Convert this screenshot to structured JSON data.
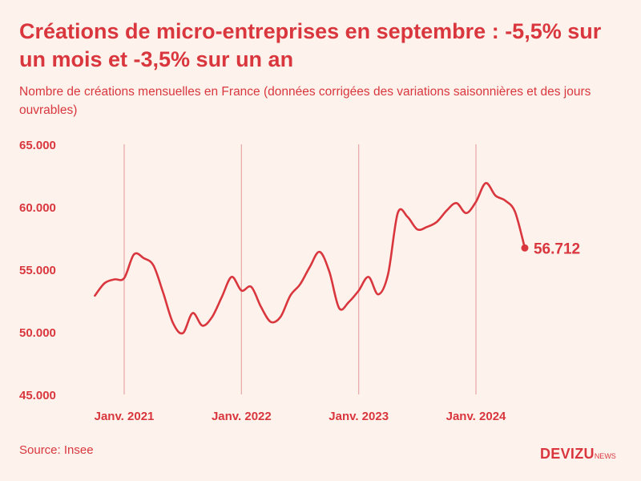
{
  "title": "Créations de micro-entreprises en septembre : -5,5% sur un mois et -3,5% sur un an",
  "subtitle": "Nombre de créations mensuelles en France (données corrigées des variations saisonnières et des jours ouvrables)",
  "source": "Source: Insee",
  "brand": {
    "main": "DEVIZU",
    "suffix": "NEWS"
  },
  "colors": {
    "accent": "#d9363e",
    "background": "#fdf3ec",
    "grid": "#e8a6a6"
  },
  "chart_data": {
    "type": "line",
    "ylim": [
      45000,
      65000
    ],
    "y_ticks": [
      {
        "value": 65000,
        "label": "65.000"
      },
      {
        "value": 60000,
        "label": "60.000"
      },
      {
        "value": 55000,
        "label": "55.000"
      },
      {
        "value": 50000,
        "label": "50.000"
      },
      {
        "value": 45000,
        "label": "45.000"
      }
    ],
    "x_ticks": [
      {
        "date": "2021-01",
        "label": "Janv. 2021"
      },
      {
        "date": "2022-01",
        "label": "Janv. 2022"
      },
      {
        "date": "2023-01",
        "label": "Janv. 2023"
      },
      {
        "date": "2024-01",
        "label": "Janv. 2024"
      }
    ],
    "vertical_gridlines": true,
    "series": [
      {
        "points": [
          {
            "date": "2020-10",
            "value": 52900
          },
          {
            "date": "2020-11",
            "value": 53900
          },
          {
            "date": "2020-12",
            "value": 54200
          },
          {
            "date": "2021-01",
            "value": 54300
          },
          {
            "date": "2021-02",
            "value": 56200
          },
          {
            "date": "2021-03",
            "value": 55900
          },
          {
            "date": "2021-04",
            "value": 55300
          },
          {
            "date": "2021-05",
            "value": 53100
          },
          {
            "date": "2021-06",
            "value": 50700
          },
          {
            "date": "2021-07",
            "value": 49900
          },
          {
            "date": "2021-08",
            "value": 51500
          },
          {
            "date": "2021-09",
            "value": 50500
          },
          {
            "date": "2021-10",
            "value": 51200
          },
          {
            "date": "2021-11",
            "value": 52800
          },
          {
            "date": "2021-12",
            "value": 54400
          },
          {
            "date": "2022-01",
            "value": 53300
          },
          {
            "date": "2022-02",
            "value": 53600
          },
          {
            "date": "2022-03",
            "value": 52000
          },
          {
            "date": "2022-04",
            "value": 50800
          },
          {
            "date": "2022-05",
            "value": 51200
          },
          {
            "date": "2022-06",
            "value": 52900
          },
          {
            "date": "2022-07",
            "value": 53800
          },
          {
            "date": "2022-08",
            "value": 55200
          },
          {
            "date": "2022-09",
            "value": 56400
          },
          {
            "date": "2022-10",
            "value": 54800
          },
          {
            "date": "2022-11",
            "value": 51900
          },
          {
            "date": "2022-12",
            "value": 52400
          },
          {
            "date": "2023-01",
            "value": 53300
          },
          {
            "date": "2023-02",
            "value": 54400
          },
          {
            "date": "2023-03",
            "value": 53000
          },
          {
            "date": "2023-04",
            "value": 54600
          },
          {
            "date": "2023-05",
            "value": 59500
          },
          {
            "date": "2023-06",
            "value": 59200
          },
          {
            "date": "2023-07",
            "value": 58200
          },
          {
            "date": "2023-08",
            "value": 58400
          },
          {
            "date": "2023-09",
            "value": 58800
          },
          {
            "date": "2023-10",
            "value": 59700
          },
          {
            "date": "2023-11",
            "value": 60300
          },
          {
            "date": "2023-12",
            "value": 59500
          },
          {
            "date": "2024-01",
            "value": 60400
          },
          {
            "date": "2024-02",
            "value": 61900
          },
          {
            "date": "2024-03",
            "value": 60900
          },
          {
            "date": "2024-04",
            "value": 60500
          },
          {
            "date": "2024-05",
            "value": 59600
          },
          {
            "date": "2024-06",
            "value": 56712
          }
        ]
      }
    ],
    "annotations": [
      {
        "date": "2024-06",
        "value": 56712,
        "label": "56.712"
      }
    ]
  }
}
